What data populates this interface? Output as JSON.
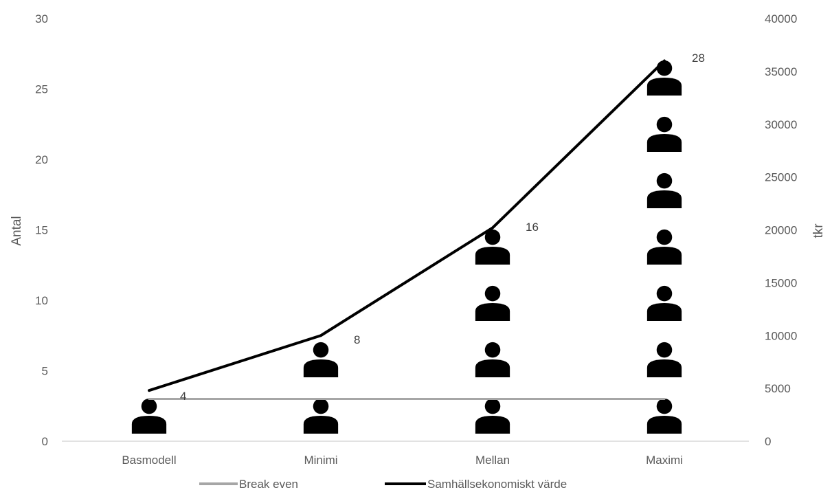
{
  "chart_data": {
    "type": "pictograph-line",
    "categories": [
      "Basmodell",
      "Minimi",
      "Mellan",
      "Maximi"
    ],
    "antal": {
      "name": "Antal",
      "values": [
        4,
        8,
        16,
        28
      ],
      "data_labels": [
        "4",
        "8",
        "16",
        "28"
      ],
      "icon": "person-icon",
      "units_per_icon": 4,
      "color": "#000000"
    },
    "series": [
      {
        "name": "Break even",
        "axis": "right",
        "values": [
          4000,
          4000,
          4000,
          4000
        ],
        "color": "#A6A6A6"
      },
      {
        "name": "Samhällsekonomiskt värde",
        "axis": "right",
        "values": [
          4800,
          10000,
          20200,
          36000
        ],
        "color": "#000000"
      }
    ],
    "y_left": {
      "label": "Antal",
      "ticks": [
        "0",
        "5",
        "10",
        "15",
        "20",
        "25",
        "30"
      ],
      "range": [
        0,
        30
      ]
    },
    "y_right": {
      "label": "tkr",
      "ticks": [
        "0",
        "5000",
        "10000",
        "15000",
        "20000",
        "25000",
        "30000",
        "35000",
        "40000"
      ],
      "range": [
        0,
        40000
      ]
    },
    "grid": false,
    "legend_position": "bottom"
  }
}
